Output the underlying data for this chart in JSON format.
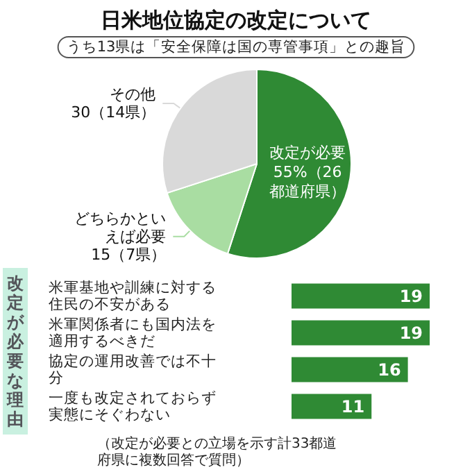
{
  "chart_data": [
    {
      "type": "pie",
      "title": "日米地位協定の改定について",
      "annotations": [
        "うち13県は「安全保障は国の専管事項」との趣旨"
      ],
      "categories": [
        "改定が必要",
        "どちらかといえば必要",
        "その他"
      ],
      "values": [
        55,
        15,
        30
      ],
      "value_labels": [
        "55%（26都道府県）",
        "15（7県）",
        "30（14県）"
      ],
      "colors": [
        "#2f8a34",
        "#a9dda2",
        "#d9d9d9"
      ],
      "legend": false
    },
    {
      "type": "bar",
      "orientation": "horizontal",
      "ylabel": "改定が必要な理由",
      "categories": [
        "米軍基地や訓練に対する住民の不安がある",
        "米軍関係者にも国内法を適用するべきだ",
        "協定の運用改善では不十分",
        "一度も改定されておらず実態にそぐわない"
      ],
      "values": [
        19,
        19,
        16,
        11
      ],
      "color": "#2f8a34",
      "data_labels": true,
      "annotations": [
        "（改定が必要との立場を示す計33都道府県に複数回答で質問）"
      ],
      "legend": false
    }
  ]
}
